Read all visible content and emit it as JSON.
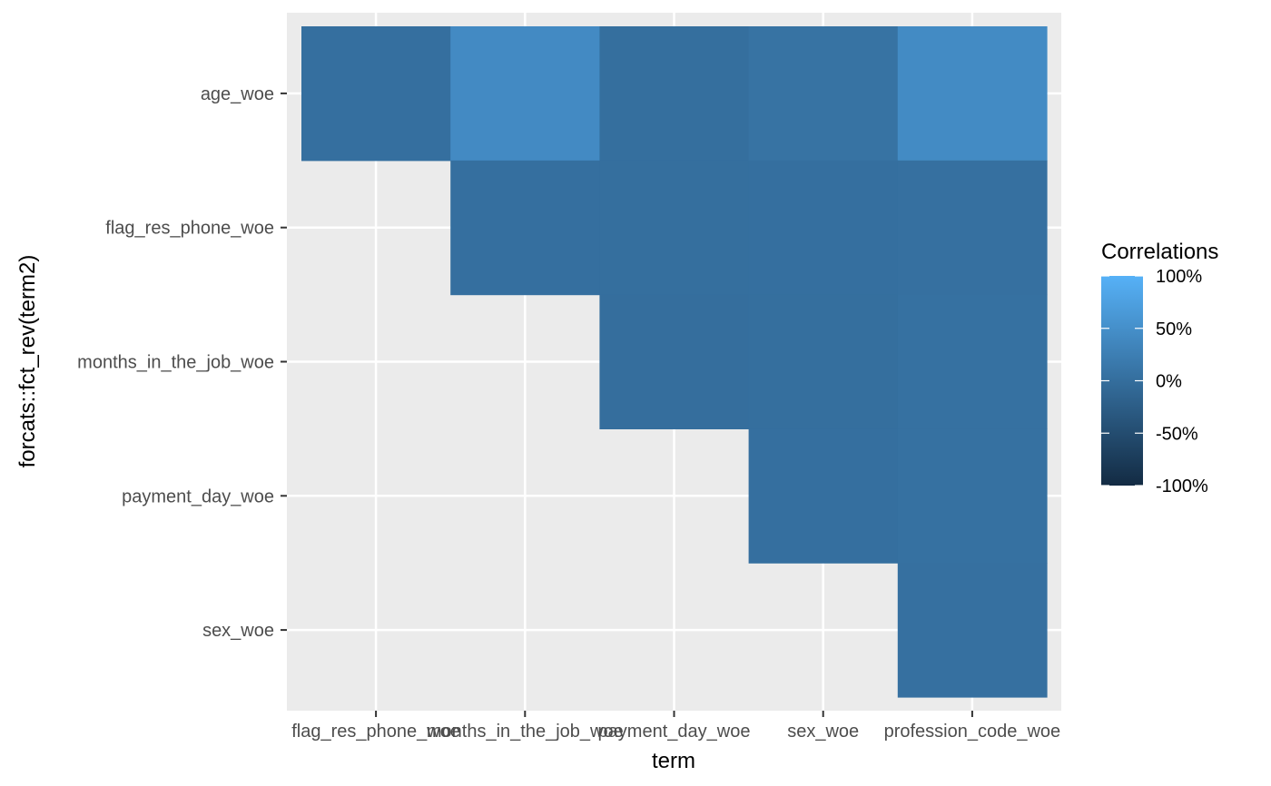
{
  "chart_data": {
    "type": "heatmap",
    "xlabel": "term",
    "ylabel": "forcats::fct_rev(term2)",
    "x_categories": [
      "flag_res_phone_woe",
      "months_in_the_job_woe",
      "payment_day_woe",
      "sex_woe",
      "profession_code_woe"
    ],
    "y_categories": [
      "age_woe",
      "flag_res_phone_woe",
      "months_in_the_job_woe",
      "payment_day_woe",
      "sex_woe"
    ],
    "cells": [
      {
        "x": "flag_res_phone_woe",
        "y": "age_woe",
        "value": 0.02
      },
      {
        "x": "months_in_the_job_woe",
        "y": "age_woe",
        "value": 0.42
      },
      {
        "x": "payment_day_woe",
        "y": "age_woe",
        "value": 0.01
      },
      {
        "x": "sex_woe",
        "y": "age_woe",
        "value": 0.07
      },
      {
        "x": "profession_code_woe",
        "y": "age_woe",
        "value": 0.43
      },
      {
        "x": "months_in_the_job_woe",
        "y": "flag_res_phone_woe",
        "value": 0.02
      },
      {
        "x": "payment_day_woe",
        "y": "flag_res_phone_woe",
        "value": 0.01
      },
      {
        "x": "sex_woe",
        "y": "flag_res_phone_woe",
        "value": 0.02
      },
      {
        "x": "profession_code_woe",
        "y": "flag_res_phone_woe",
        "value": 0.03
      },
      {
        "x": "payment_day_woe",
        "y": "months_in_the_job_woe",
        "value": 0.0
      },
      {
        "x": "sex_woe",
        "y": "months_in_the_job_woe",
        "value": 0.01
      },
      {
        "x": "profession_code_woe",
        "y": "months_in_the_job_woe",
        "value": 0.04
      },
      {
        "x": "sex_woe",
        "y": "payment_day_woe",
        "value": 0.02
      },
      {
        "x": "profession_code_woe",
        "y": "payment_day_woe",
        "value": 0.04
      },
      {
        "x": "profession_code_woe",
        "y": "sex_woe",
        "value": 0.03
      }
    ],
    "legend": {
      "title": "Correlations",
      "position": "right",
      "range": [
        -1,
        1
      ],
      "breaks": [
        1,
        0.5,
        0,
        -0.5,
        -1
      ],
      "break_labels": [
        "100%",
        "50%",
        "0%",
        "-50%",
        "-100%"
      ],
      "low_color": "#132B43",
      "high_color": "#56B1F7"
    },
    "panel_background": "#EBEBEB",
    "grid_color": "#FFFFFF"
  }
}
